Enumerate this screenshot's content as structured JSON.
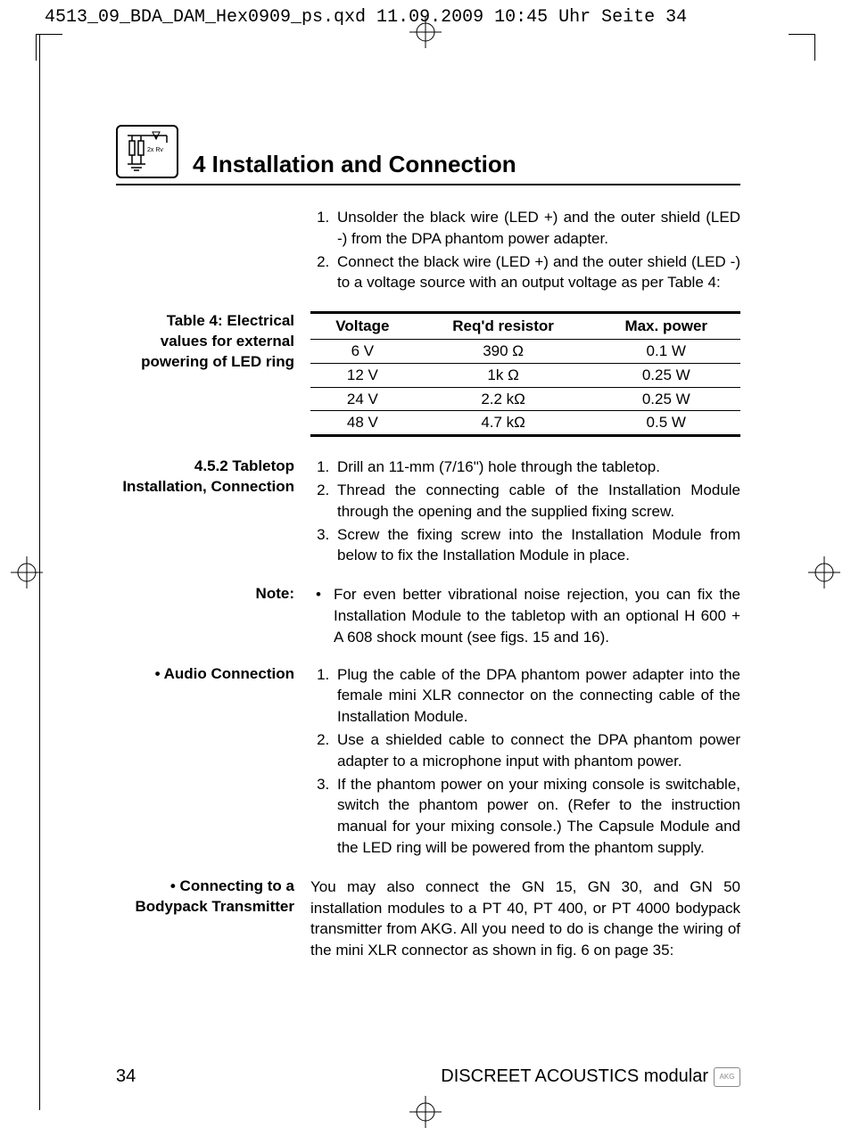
{
  "header": {
    "slug": "4513_09_BDA_DAM_Hex0909_ps.qxd  11.09.2009  10:45 Uhr  Seite 34"
  },
  "section": {
    "number_title": "4 Installation and Connection",
    "icon_label": "2x Rv"
  },
  "intro_list": {
    "items": [
      "Unsolder the black wire (LED +) and the outer shield (LED -) from the DPA phantom power adapter.",
      "Connect the black wire (LED +) and the outer shield (LED -) to a voltage source with an output voltage as per Table 4:"
    ]
  },
  "table4": {
    "caption": "Table 4: Electrical values for external powering of LED ring",
    "columns": [
      "Voltage",
      "Req'd resistor",
      "Max. power"
    ],
    "rows": [
      [
        "6 V",
        "390 Ω",
        "0.1 W"
      ],
      [
        "12 V",
        "1k Ω",
        "0.25 W"
      ],
      [
        "24 V",
        "2.2 kΩ",
        "0.25 W"
      ],
      [
        "48 V",
        "4.7 kΩ",
        "0.5 W"
      ]
    ]
  },
  "s452": {
    "heading": "4.5.2 Tabletop Installation, Connection",
    "items": [
      "Drill an 11-mm (7/16\") hole through the tabletop.",
      "Thread the connecting cable of the Installation Module through the opening and the supplied fixing screw.",
      "Screw the fixing screw into the Installation Module from below to fix the Installation Module in place."
    ]
  },
  "note": {
    "label": "Note:",
    "text": "For even better vibrational noise rejection, you can fix the Installation Module to the tabletop with an optional H 600 + A 608 shock mount (see figs. 15 and 16)."
  },
  "audio": {
    "heading": "• Audio Connection",
    "items": [
      "Plug the cable of the DPA phantom power adapter into the female mini XLR connector on the connecting cable of the Installation Module.",
      "Use a shielded cable to connect the DPA phantom power adapter to a microphone input with phantom power.",
      "If the phantom power on your mixing console is switchable, switch the phantom power on. (Refer to the instruction manual for your mixing console.) The Capsule Module and the LED ring will be powered from the phantom supply."
    ]
  },
  "bodypack": {
    "heading": "• Connecting to a Bodypack Transmitter",
    "text": "You may also connect the GN 15, GN 30, and GN 50 installation modules to a PT 40, PT 400, or PT 4000 bodypack transmitter from AKG. All you need to do is change the wiring of the mini XLR connector as shown in fig. 6 on page 35:"
  },
  "footer": {
    "page": "34",
    "product": "DISCREET ACOUSTICS modular",
    "logo": "AKG"
  }
}
